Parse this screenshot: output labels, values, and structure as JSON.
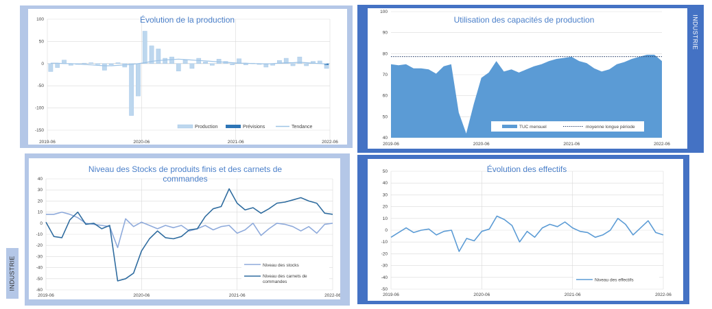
{
  "side_labels": {
    "top_right": "INDUSTRIE",
    "bottom_left": "INDUSTRIE"
  },
  "colors": {
    "light_frame": "#b4c7e7",
    "dark_frame": "#4472c4",
    "title": "#4a7fc9",
    "grid": "#d9d9d9",
    "bar_light": "#bdd7ee",
    "bar_edge": "#9dc3e6",
    "bar_dark": "#2e75b6",
    "tendance": "#9dc3e6",
    "area": "#5b9bd5",
    "dotted": "#203864",
    "stocks_line": "#8eaadb",
    "carnets_line": "#2f6c9f",
    "effectifs_line": "#5b9bd5",
    "axis_text": "#404040"
  },
  "chart_data": [
    {
      "id": "production",
      "type": "bar",
      "title": "Évolution de la production",
      "x_tick_labels": [
        "2019-06",
        "2020-06",
        "2021-06",
        "2022-06"
      ],
      "y_ticks": [
        -150,
        -100,
        -50,
        0,
        50,
        100
      ],
      "ylim": [
        -150,
        100
      ],
      "legend": [
        "Production",
        "Prévisions",
        "Tendance"
      ],
      "legend_position": "bottom-right",
      "series": [
        {
          "name": "Production",
          "values": [
            -18,
            -9,
            8,
            -4,
            -2,
            1,
            2,
            -2,
            -15,
            -3,
            2,
            -8,
            -117,
            -73,
            73,
            40,
            33,
            12,
            15,
            -17,
            8,
            -11,
            12,
            4,
            -4,
            10,
            5,
            -3,
            11,
            -3,
            1,
            -2,
            -8,
            -4,
            7,
            12,
            -5,
            15,
            -5,
            5,
            6,
            -11
          ]
        },
        {
          "name": "Prévisions",
          "values": [
            0,
            0,
            0,
            0,
            0,
            0,
            0,
            0,
            0,
            0,
            0,
            0,
            0,
            0,
            0,
            0,
            0,
            0,
            0,
            0,
            0,
            0,
            0,
            0,
            0,
            0,
            0,
            0,
            0,
            0,
            0,
            0,
            0,
            0,
            0,
            0,
            0,
            0,
            0,
            0,
            0,
            -3
          ]
        },
        {
          "name": "Tendance",
          "values": [
            1,
            1,
            0,
            0,
            -1,
            -2,
            -3,
            -4,
            -5,
            -5,
            -4,
            -3,
            -2,
            0,
            2,
            5,
            7,
            8,
            9,
            10,
            9,
            8,
            7,
            6,
            5,
            4,
            3,
            2,
            1,
            1,
            0,
            0,
            -1,
            0,
            1,
            2,
            2,
            3,
            2,
            1,
            0,
            -1
          ]
        }
      ]
    },
    {
      "id": "capacites",
      "type": "area",
      "title": "Utilisation des capacités de production",
      "x_tick_labels": [
        "2019-06",
        "2020-06",
        "2021-06",
        "2022-06"
      ],
      "y_ticks": [
        40,
        50,
        60,
        70,
        80,
        90,
        100
      ],
      "ylim": [
        40,
        100
      ],
      "legend": [
        "TUC mensuel",
        "moyenne longue période"
      ],
      "legend_position": "bottom-right",
      "series": [
        {
          "name": "TUC mensuel",
          "values": [
            75,
            74.5,
            75,
            73,
            73,
            72.5,
            70.5,
            74,
            75,
            52,
            42,
            56,
            68.5,
            71,
            76.5,
            71.5,
            72.5,
            71,
            72.5,
            74,
            75,
            76.5,
            77.5,
            78,
            78.5,
            76.5,
            75.5,
            73,
            71.5,
            72.5,
            75,
            76,
            77.5,
            78.5,
            79.5,
            79.5,
            76.5
          ]
        },
        {
          "name": "moyenne longue période",
          "value": 78.6
        }
      ]
    },
    {
      "id": "stocks",
      "type": "line",
      "title": "Niveau des Stocks de produits finis et des carnets de commandes",
      "title_lines": [
        "Niveau des Stocks de produits finis et des carnets de",
        "commandes"
      ],
      "x_tick_labels": [
        "2019-06",
        "2020-06",
        "2021-06",
        "2022-06"
      ],
      "y_ticks": [
        -60,
        -50,
        -40,
        -30,
        -20,
        -10,
        0,
        10,
        20,
        30,
        40
      ],
      "ylim": [
        -60,
        40
      ],
      "legend": [
        "Niveau des stocks",
        "Niveau des carnets de commandes"
      ],
      "legend_lines": [
        [
          "Niveau des stocks"
        ],
        [
          "Niveau des carnets de",
          "commandes"
        ]
      ],
      "legend_position": "bottom-right",
      "series": [
        {
          "name": "Niveau des stocks",
          "values": [
            8,
            8,
            10,
            8,
            5,
            0,
            -1,
            -2,
            -3,
            -22,
            4,
            -3,
            1,
            -2,
            -5,
            -2,
            -4,
            -2,
            -7,
            -5,
            -2,
            -6,
            -3,
            -2,
            -9,
            -6,
            0,
            -11,
            -5,
            0,
            -1,
            -3,
            -7,
            -3,
            -9,
            -1,
            0
          ]
        },
        {
          "name": "Niveau des carnets de commandes",
          "values": [
            1,
            -12,
            -13,
            3,
            10,
            -1,
            0,
            -5,
            -2,
            -52,
            -50,
            -45,
            -25,
            -14,
            -7,
            -13,
            -14,
            -12,
            -6,
            -5,
            6,
            13,
            15,
            31,
            18,
            12,
            14,
            9,
            13,
            18,
            19,
            21,
            23,
            20,
            18,
            9,
            8
          ]
        }
      ]
    },
    {
      "id": "effectifs",
      "type": "line",
      "title": "Évolution des effectifs",
      "x_tick_labels": [
        "2019-06",
        "2020-06",
        "2021-06",
        "2022-06"
      ],
      "y_ticks": [
        -50,
        -40,
        -30,
        -20,
        -10,
        0,
        10,
        20,
        30,
        40,
        50
      ],
      "ylim": [
        -50,
        50
      ],
      "legend": [
        "Niveau des effectifs"
      ],
      "legend_position": "bottom-right",
      "series": [
        {
          "name": "Niveau des effectifs",
          "values": [
            -6,
            -2,
            2,
            -2,
            0,
            1,
            -4,
            -1,
            0,
            -18,
            -7,
            -9,
            -1,
            1,
            12,
            9,
            4,
            -10,
            -1,
            -6,
            2,
            5,
            3,
            7,
            2,
            -1,
            -2,
            -6,
            -4,
            0,
            10,
            5,
            -4,
            2,
            8,
            -2,
            -4
          ]
        }
      ]
    }
  ]
}
